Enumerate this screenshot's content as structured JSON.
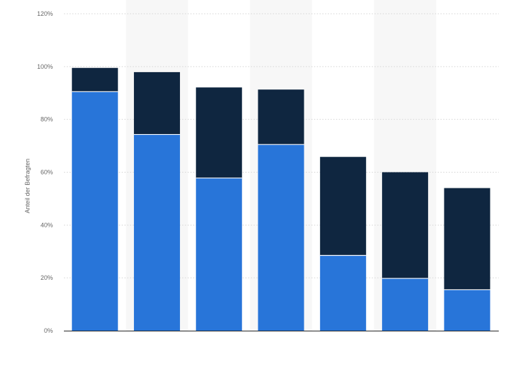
{
  "chart_data": {
    "type": "bar",
    "stacked": true,
    "title": "",
    "xlabel": "",
    "ylabel": "Anteil der Befragten",
    "ylim": [
      0,
      120
    ],
    "y_ticks": [
      0,
      20,
      40,
      60,
      80,
      100,
      120
    ],
    "y_tick_suffix": "%",
    "grid": true,
    "legend": "none",
    "categories": [
      "",
      "",
      "",
      "",
      "",
      "",
      ""
    ],
    "series": [
      {
        "color": "#2875d9",
        "values": [
          90.5,
          74.3,
          57.8,
          70.5,
          28.5,
          19.8,
          15.5
        ]
      },
      {
        "color": "#0f2640",
        "values": [
          9.0,
          23.6,
          34.3,
          20.8,
          37.3,
          40.2,
          38.5
        ]
      }
    ],
    "totals": [
      99.5,
      97.9,
      92.1,
      91.3,
      65.8,
      60.0,
      54.0
    ],
    "colors": {
      "band": "#f7f7f7",
      "grid": "#dddddd",
      "axis": "#222222",
      "tick_text": "#666666"
    }
  }
}
